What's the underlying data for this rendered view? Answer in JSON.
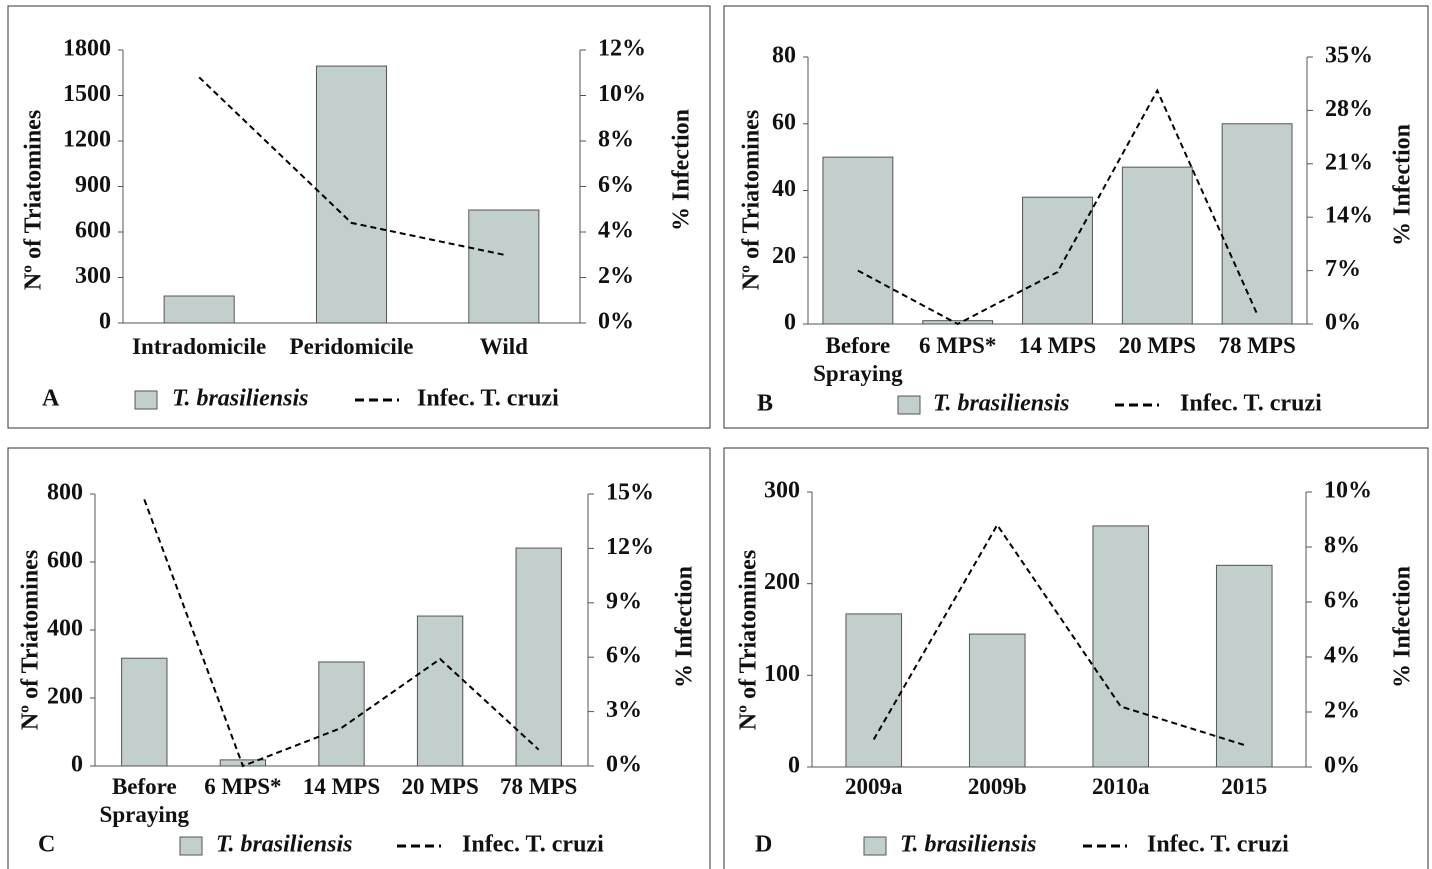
{
  "chart_data": [
    {
      "type": "combo",
      "panel": "A",
      "ylabel": "Nº of Triatomines",
      "y2label": "% Infection",
      "categories": [
        "Intradomicile",
        "Peridomicile",
        "Wild"
      ],
      "series": [
        {
          "name": "T. brasiliensis",
          "type": "bar",
          "color": "#c3cfcd",
          "values": [
            178,
            1694,
            745
          ]
        },
        {
          "name": "Infec. T. cruzi",
          "type": "line",
          "axis": "y2",
          "color": "#000000",
          "values": [
            10.8,
            4.4,
            3.0
          ]
        }
      ],
      "ylim": [
        0,
        1800
      ],
      "yticks": [
        0,
        300,
        600,
        900,
        1200,
        1500,
        1800
      ],
      "y2lim": [
        0,
        12
      ],
      "y2ticks": [
        {
          "value": 0,
          "label": "0%"
        },
        {
          "value": 2,
          "label": "2%"
        },
        {
          "value": 4,
          "label": "4%"
        },
        {
          "value": 6,
          "label": "6%"
        },
        {
          "value": 8,
          "label": "8%"
        },
        {
          "value": 10,
          "label": "10%"
        },
        {
          "value": 12,
          "label": "12%"
        }
      ]
    },
    {
      "type": "combo",
      "panel": "B",
      "ylabel": "Nº of Triatomines",
      "y2label": "% Infection",
      "categories": [
        "Before Spraying",
        "6 MPS*",
        "14 MPS",
        "20 MPS",
        "78 MPS"
      ],
      "series": [
        {
          "name": "T. brasiliensis",
          "type": "bar",
          "color": "#c3cfcd",
          "values": [
            50,
            1,
            38,
            47,
            60
          ]
        },
        {
          "name": "Infec. T. cruzi",
          "type": "line",
          "axis": "y2",
          "color": "#000000",
          "values": [
            7.0,
            0,
            6.8,
            30.6,
            1.3
          ]
        }
      ],
      "ylim": [
        0,
        80
      ],
      "yticks": [
        0,
        20,
        40,
        60,
        80
      ],
      "y2lim": [
        0,
        35
      ],
      "y2ticks": [
        {
          "value": 0,
          "label": "0%"
        },
        {
          "value": 7,
          "label": "7%"
        },
        {
          "value": 14,
          "label": "14%"
        },
        {
          "value": 21,
          "label": "21%"
        },
        {
          "value": 28,
          "label": "28%"
        },
        {
          "value": 35,
          "label": "35%"
        }
      ]
    },
    {
      "type": "combo",
      "panel": "C",
      "ylabel": "Nº of Triatomines",
      "y2label": "% Infection",
      "categories": [
        "Before Spraying",
        "6 MPS*",
        "14 MPS",
        "20 MPS",
        "78 MPS"
      ],
      "series": [
        {
          "name": "T. brasiliensis",
          "type": "bar",
          "color": "#c3cfcd",
          "values": [
            317,
            18,
            306,
            441,
            641
          ]
        },
        {
          "name": "Infec. T. cruzi",
          "type": "line",
          "axis": "y2",
          "color": "#000000",
          "values": [
            14.7,
            0,
            2.1,
            5.9,
            0.9
          ]
        }
      ],
      "ylim": [
        0,
        800
      ],
      "yticks": [
        0,
        200,
        400,
        600,
        800
      ],
      "y2lim": [
        0,
        15
      ],
      "y2ticks": [
        {
          "value": 0,
          "label": "0%"
        },
        {
          "value": 3,
          "label": "3%"
        },
        {
          "value": 6,
          "label": "6%"
        },
        {
          "value": 9,
          "label": "9%"
        },
        {
          "value": 12,
          "label": "12%"
        },
        {
          "value": 15,
          "label": "15%"
        }
      ]
    },
    {
      "type": "combo",
      "panel": "D",
      "ylabel": "Nº of Triatomines",
      "y2label": "% Infection",
      "categories": [
        "2009a",
        "2009b",
        "2010a",
        "2015"
      ],
      "series": [
        {
          "name": "T. brasiliensis",
          "type": "bar",
          "color": "#c3cfcd",
          "values": [
            167,
            145,
            263,
            220
          ]
        },
        {
          "name": "Infec. T. cruzi",
          "type": "line",
          "axis": "y2",
          "color": "#000000",
          "values": [
            1.0,
            8.8,
            2.2,
            0.8
          ]
        }
      ],
      "ylim": [
        0,
        300
      ],
      "yticks": [
        0,
        100,
        200,
        300
      ],
      "y2lim": [
        0,
        10
      ],
      "y2ticks": [
        {
          "value": 0,
          "label": "0%"
        },
        {
          "value": 2,
          "label": "2%"
        },
        {
          "value": 4,
          "label": "4%"
        },
        {
          "value": 6,
          "label": "6%"
        },
        {
          "value": 8,
          "label": "8%"
        },
        {
          "value": 10,
          "label": "10%"
        }
      ]
    }
  ]
}
